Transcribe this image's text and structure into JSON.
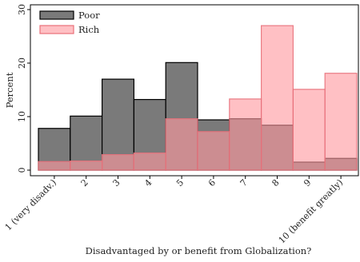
{
  "chart_data": {
    "type": "bar",
    "title": "",
    "xlabel": "Disadvantaged by or benefit from Globalization?",
    "ylabel": "Percent",
    "ylim": [
      0,
      30
    ],
    "yticks": [
      0,
      10,
      20,
      30
    ],
    "grid": false,
    "legend_position": "top-left",
    "categories": [
      "1 (very disadv.)",
      "2",
      "3",
      "4",
      "5",
      "6",
      "7",
      "8",
      "9",
      "10 (benefit greatly)"
    ],
    "series": [
      {
        "name": "Poor",
        "color": "#7a7a7a",
        "edge": "#000000",
        "opacity": 1.0,
        "values": [
          7.8,
          10.1,
          17.0,
          13.2,
          20.1,
          9.4,
          9.6,
          8.4,
          1.5,
          2.2
        ]
      },
      {
        "name": "Rich",
        "color": "#ff9aa0",
        "edge": "#e8707a",
        "opacity": 0.62,
        "values": [
          1.6,
          1.7,
          2.9,
          3.2,
          9.6,
          7.2,
          13.3,
          27.0,
          15.1,
          18.1
        ]
      }
    ]
  }
}
